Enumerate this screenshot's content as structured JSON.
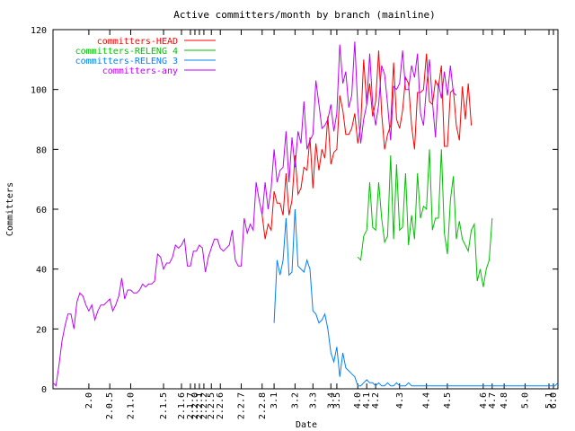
{
  "chart_data": {
    "type": "line",
    "title": "Active committers/month by branch (mainline)",
    "xlabel": "Date",
    "ylabel": "Committers",
    "ylim": [
      0,
      120
    ],
    "yticks": [
      0,
      20,
      40,
      60,
      80,
      100,
      120
    ],
    "xlim": [
      0,
      169
    ],
    "grid": false,
    "legend_position": "top-left",
    "x_tick_labels": [
      {
        "x": 12,
        "label": "2.0"
      },
      {
        "x": 19,
        "label": "2.0.5"
      },
      {
        "x": 26,
        "label": "2.1.0"
      },
      {
        "x": 37,
        "label": "2.1.5"
      },
      {
        "x": 43,
        "label": "2.1.6"
      },
      {
        "x": 46,
        "label": "2.1.7"
      },
      {
        "x": 47.5,
        "label": "2.2.0"
      },
      {
        "x": 49,
        "label": "2.2.1"
      },
      {
        "x": 50.5,
        "label": "2.2.2"
      },
      {
        "x": 53,
        "label": "2.2.5"
      },
      {
        "x": 56,
        "label": "2.2.6"
      },
      {
        "x": 63,
        "label": "2.2.7"
      },
      {
        "x": 70,
        "label": "2.2.8"
      },
      {
        "x": 74,
        "label": "3.1"
      },
      {
        "x": 81,
        "label": "3.2"
      },
      {
        "x": 87,
        "label": "3.3"
      },
      {
        "x": 93,
        "label": "3.4"
      },
      {
        "x": 95,
        "label": "3.5"
      },
      {
        "x": 102,
        "label": "4.0"
      },
      {
        "x": 105,
        "label": "4.1"
      },
      {
        "x": 108,
        "label": "4.2"
      },
      {
        "x": 116,
        "label": "4.3"
      },
      {
        "x": 125,
        "label": "4.4"
      },
      {
        "x": 132,
        "label": "4.5"
      },
      {
        "x": 144,
        "label": "4.6"
      },
      {
        "x": 147,
        "label": "4.7"
      },
      {
        "x": 151,
        "label": "4.8"
      },
      {
        "x": 158,
        "label": "5.0"
      },
      {
        "x": 166,
        "label": "5.1"
      },
      {
        "x": 167.5,
        "label": "6.0"
      }
    ],
    "series": [
      {
        "name": "committers-HEAD",
        "color": "#ff0000",
        "start_x": 70,
        "values": [
          58,
          50,
          55,
          53,
          66,
          62,
          62,
          58,
          72,
          58,
          63,
          78,
          65,
          67,
          74,
          73,
          84,
          67,
          82,
          73,
          80,
          77,
          91,
          75,
          79,
          80,
          98,
          93,
          85,
          85,
          87,
          92,
          82,
          88,
          110,
          95,
          102,
          91,
          96,
          113,
          92,
          80,
          85,
          88,
          109,
          90,
          87,
          93,
          104,
          102,
          88,
          80,
          99,
          99,
          100,
          112,
          96,
          95,
          103,
          101,
          108,
          81,
          81,
          99,
          100,
          88,
          83,
          101,
          90,
          102,
          88
        ]
      },
      {
        "name": "committers-RELENG 4",
        "color": "#00c000",
        "start_x": 102,
        "values": [
          44,
          43,
          51,
          53,
          69,
          54,
          53,
          69,
          57,
          49,
          51,
          78,
          50,
          75,
          53,
          54,
          72,
          48,
          58,
          50,
          72,
          57,
          61,
          60,
          80,
          53,
          57,
          57,
          80,
          52,
          45,
          63,
          71,
          50,
          56,
          50,
          48,
          46,
          53,
          55,
          36,
          40,
          34,
          40,
          43,
          57
        ]
      },
      {
        "name": "committers-RELENG 3",
        "color": "#0080ff",
        "start_x": 74,
        "values": [
          22,
          43,
          38,
          43,
          57,
          38,
          39,
          60,
          41,
          40,
          39,
          43,
          40,
          26,
          25,
          22,
          23,
          25,
          20,
          12,
          9,
          14,
          4,
          12,
          7,
          6,
          5,
          4,
          1,
          1,
          2,
          3,
          2,
          2,
          1,
          2,
          1,
          1,
          2,
          1,
          1,
          2,
          1,
          1,
          1,
          2,
          1,
          1,
          1,
          1,
          1,
          1,
          1,
          1,
          1,
          1,
          1,
          1,
          1,
          1,
          1,
          1,
          1,
          1,
          1,
          1,
          1,
          1,
          1,
          1,
          1,
          1,
          1,
          1,
          1,
          1,
          1,
          1,
          1,
          1,
          1,
          1,
          1,
          1,
          1,
          1,
          1,
          1,
          1,
          1,
          1,
          1,
          1,
          1,
          1,
          2
        ]
      },
      {
        "name": "committers-any",
        "color": "#c000ff",
        "start_x": 0,
        "values": [
          2,
          1,
          8,
          16,
          21,
          25,
          25,
          20,
          29,
          32,
          31,
          28,
          26,
          28,
          23,
          26,
          28,
          28,
          29,
          30,
          26,
          28,
          31,
          37,
          30,
          33,
          33,
          32,
          32,
          33,
          35,
          34,
          35,
          35,
          36,
          45,
          44,
          40,
          42,
          42,
          44,
          48,
          47,
          48,
          50,
          41,
          41,
          46,
          46,
          48,
          47,
          39,
          44,
          47,
          50,
          50,
          47,
          46,
          47,
          48,
          53,
          43,
          41,
          41,
          57,
          52,
          55,
          53,
          69,
          63,
          58,
          69,
          60,
          67,
          80,
          69,
          73,
          74,
          86,
          69,
          84,
          74,
          86,
          82,
          96,
          80,
          83,
          85,
          103,
          95,
          87,
          88,
          90,
          95,
          86,
          92,
          115,
          102,
          106,
          94,
          98,
          116,
          94,
          82,
          90,
          95,
          112,
          95,
          88,
          95,
          108,
          105,
          95,
          83,
          101,
          100,
          102,
          113,
          100,
          100,
          108,
          104,
          112,
          92,
          88,
          101,
          110,
          96,
          84,
          102,
          97,
          106,
          98,
          108,
          99,
          98
        ]
      }
    ]
  }
}
